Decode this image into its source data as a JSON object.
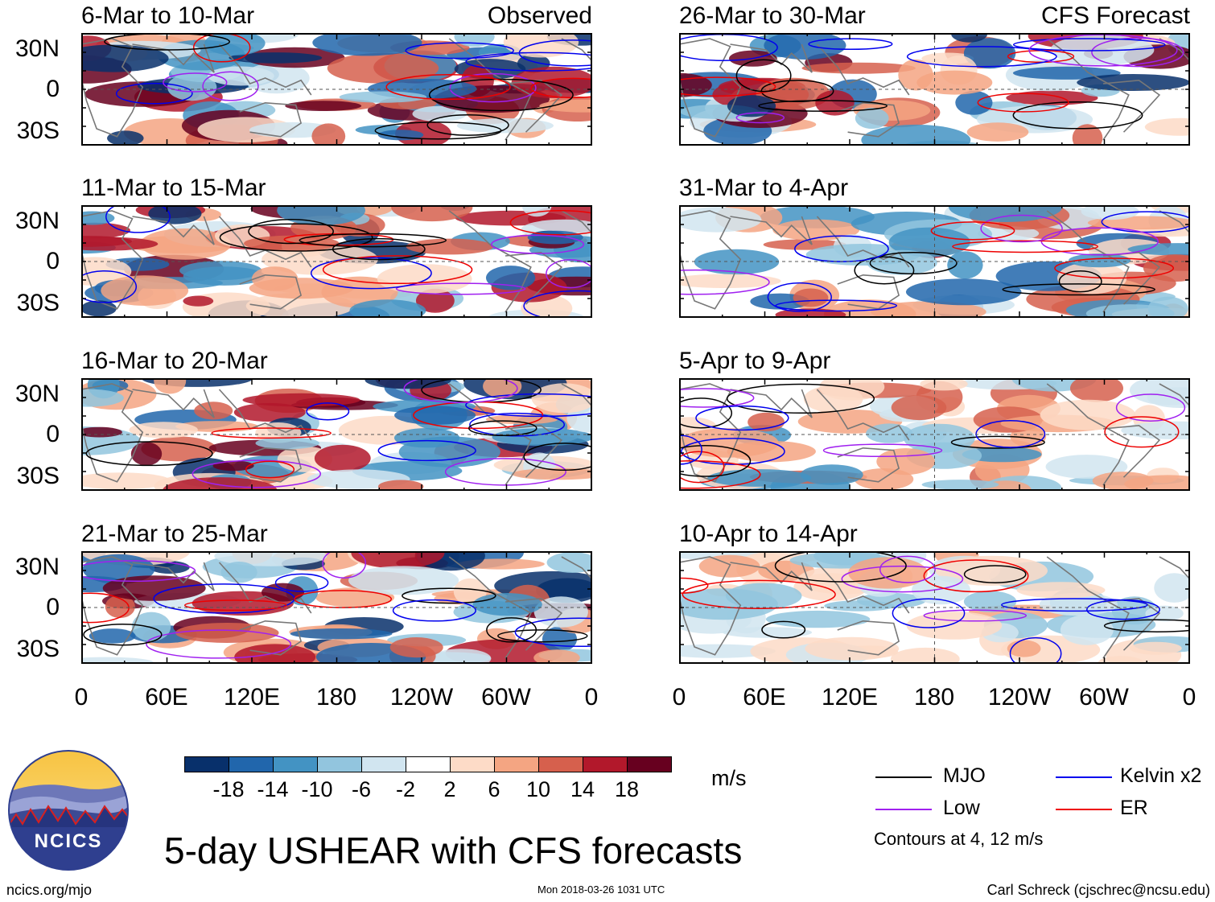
{
  "panels": [
    {
      "id": "obs1",
      "title": "6-Mar to 10-Mar",
      "subtitle": "Observed",
      "kind": "observed"
    },
    {
      "id": "obs2",
      "title": "11-Mar to 15-Mar",
      "subtitle": "",
      "kind": "observed"
    },
    {
      "id": "obs3",
      "title": "16-Mar to 20-Mar",
      "subtitle": "",
      "kind": "observed"
    },
    {
      "id": "obs4",
      "title": "21-Mar to 25-Mar",
      "subtitle": "",
      "kind": "observed"
    },
    {
      "id": "fc1",
      "title": "26-Mar to 30-Mar",
      "subtitle": "CFS Forecast",
      "kind": "forecast"
    },
    {
      "id": "fc2",
      "title": "31-Mar to 4-Apr",
      "subtitle": "",
      "kind": "forecast"
    },
    {
      "id": "fc3",
      "title": "5-Apr to 9-Apr",
      "subtitle": "",
      "kind": "forecast"
    },
    {
      "id": "fc4",
      "title": "10-Apr to 14-Apr",
      "subtitle": "",
      "kind": "forecast"
    }
  ],
  "y_axis_labels": [
    "30N",
    "0",
    "30S"
  ],
  "x_axis_labels": [
    "0",
    "60E",
    "120E",
    "180",
    "120W",
    "60W",
    "0"
  ],
  "colorbar": {
    "colors": [
      "#08306b",
      "#2166ac",
      "#4393c3",
      "#92c5de",
      "#d1e5f0",
      "#ffffff",
      "#fddbc7",
      "#f4a582",
      "#d6604d",
      "#b2182b",
      "#67001f"
    ],
    "labels": [
      "-18",
      "-14",
      "-10",
      "-6",
      "-2",
      "2",
      "6",
      "10",
      "14",
      "18"
    ],
    "unit": "m/s"
  },
  "legend": [
    {
      "label": "MJO",
      "color": "#000000"
    },
    {
      "label": "Kelvin x2",
      "color": "#0000ee"
    },
    {
      "label": "Low",
      "color": "#a020f0"
    },
    {
      "label": "ER",
      "color": "#ee0000"
    }
  ],
  "contours_note": "Contours at 4, 12 m/s",
  "title": "5-day USHEAR with CFS forecasts",
  "logo_text": "NCICS",
  "footer": {
    "left": "ncics.org/mjo",
    "center": "Mon 2018-03-26 1031 UTC",
    "right": "Carl Schreck (cjschrec@ncsu.edu)"
  }
}
